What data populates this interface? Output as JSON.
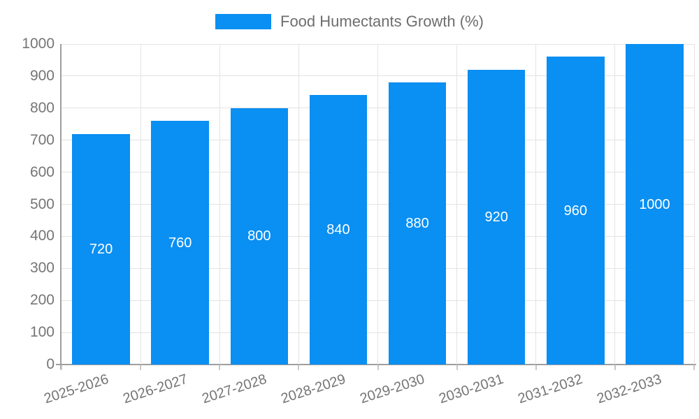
{
  "chart_data": {
    "type": "bar",
    "title": "",
    "legend": {
      "label": "Food Humectants Growth (%)",
      "position": "top-center"
    },
    "categories": [
      "2025-2026",
      "2026-2027",
      "2027-2028",
      "2028-2029",
      "2029-2030",
      "2030-2031",
      "2031-2032",
      "2032-2033"
    ],
    "values": [
      720,
      760,
      800,
      840,
      880,
      920,
      960,
      1000
    ],
    "value_labels_shown": true,
    "xlabel": "",
    "ylabel": "",
    "ylim": [
      0,
      1000
    ],
    "ytick_step": 100,
    "yticks": [
      0,
      100,
      200,
      300,
      400,
      500,
      600,
      700,
      800,
      900,
      1000
    ],
    "grid": true,
    "colors": {
      "bar": "#0A8FF2",
      "value_label": "#ffffff",
      "axis_text": "#757575",
      "legend_text": "#6e6e6e",
      "gridline": "#e3e3e3",
      "axis_line": "#9e9e9e"
    }
  }
}
